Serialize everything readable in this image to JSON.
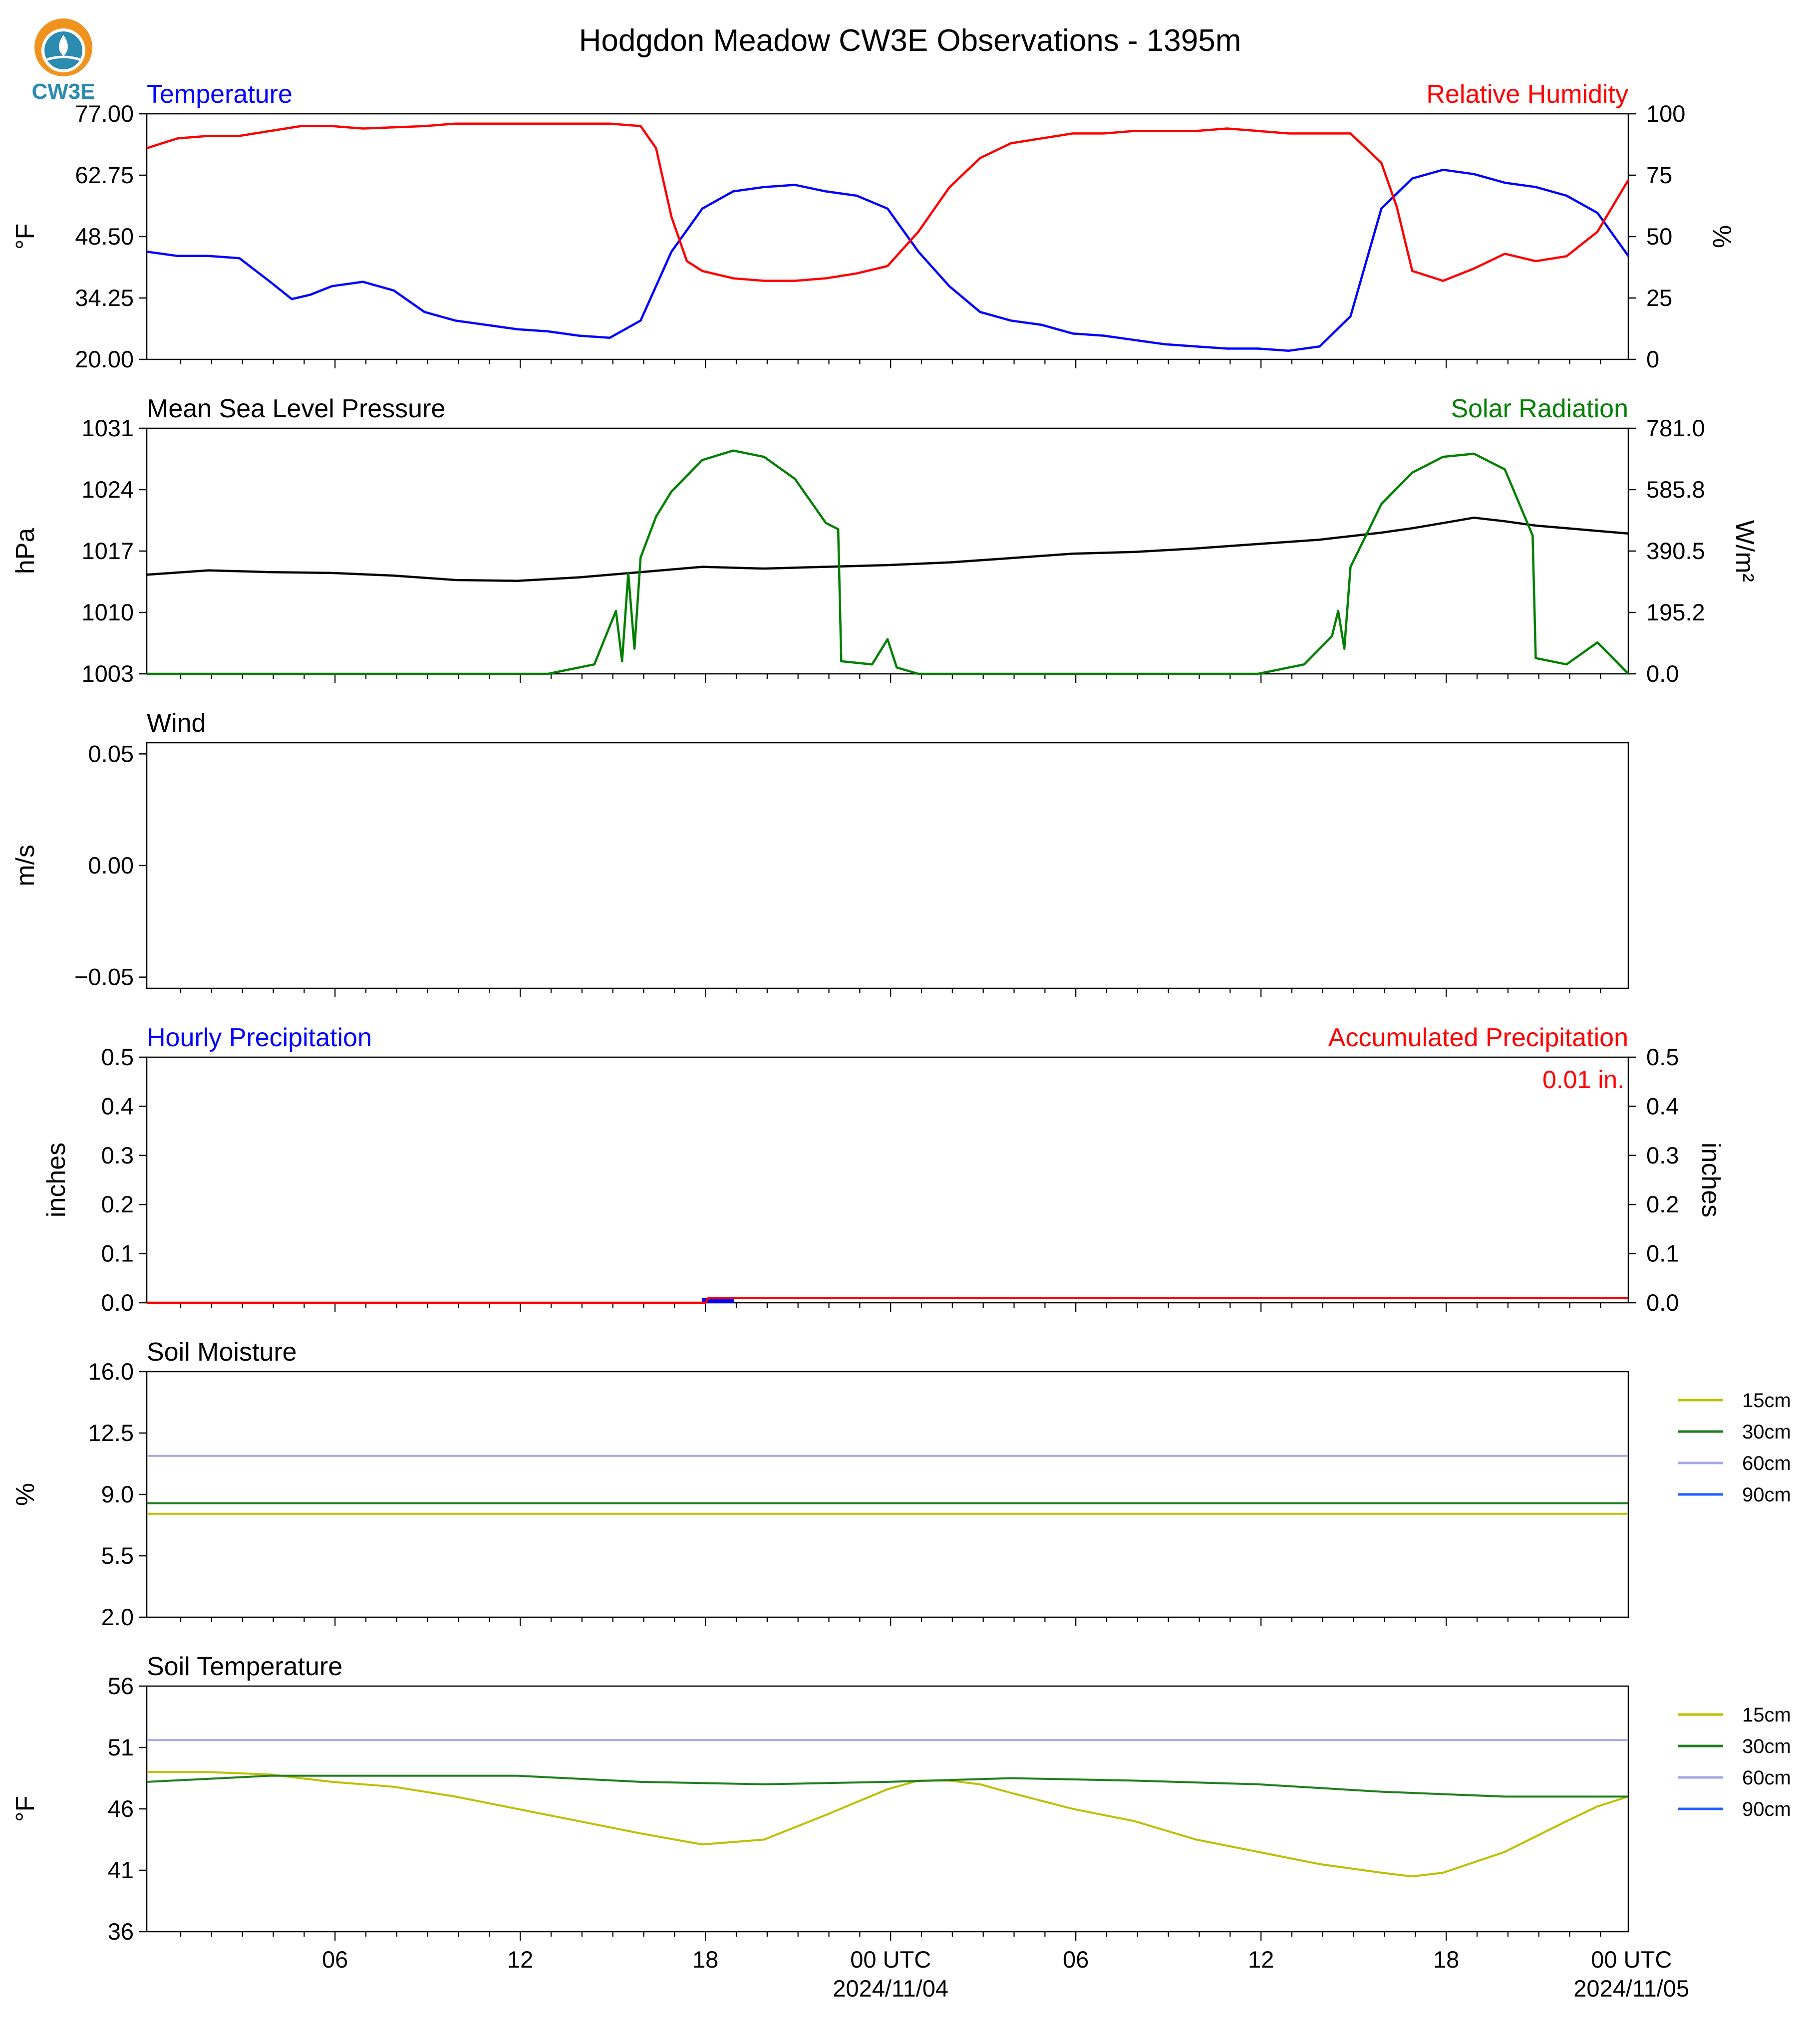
{
  "page": {
    "title": "Hodgdon Meadow CW3E Observations - 1395m",
    "logo_text": "CW3E"
  },
  "colors": {
    "temperature": "#0000ff",
    "humidity": "#ff0000",
    "pressure": "#000000",
    "solar": "#008000",
    "hourly_precip": "#0000ff",
    "accum_precip": "#ff0000",
    "soil_15cm": "#bfbf00",
    "soil_30cm": "#1f7f1f",
    "soil_60cm": "#a6a8e6",
    "soil_90cm": "#1f5fff",
    "logo_orange": "#f0921e",
    "logo_teal": "#2b8bb0"
  },
  "x_axis": {
    "tick_labels": [
      "06",
      "12",
      "18",
      "00 UTC",
      "06",
      "12",
      "18",
      "00 UTC"
    ],
    "date_labels": [
      "2024/11/04",
      "2024/11/05"
    ]
  },
  "chart_data": [
    {
      "type": "line",
      "title_left": "Temperature",
      "title_right": "Relative Humidity",
      "ylabel_left": "°F",
      "ylabel_right": "%",
      "ylim_left": [
        20.0,
        77.0
      ],
      "ylim_right": [
        0,
        100
      ],
      "yticks_left": [
        "20.00",
        "34.25",
        "48.50",
        "62.75",
        "77.00"
      ],
      "yticks_right": [
        "0",
        "25",
        "50",
        "75",
        "100"
      ],
      "x_hours_range": [
        1,
        49
      ],
      "series": [
        {
          "name": "Temperature",
          "axis": "left",
          "x": [
            1,
            2,
            3,
            4,
            5,
            5.7,
            6.3,
            7,
            8,
            9,
            10,
            11,
            12,
            13,
            14,
            15,
            16,
            17,
            18,
            19,
            20,
            21,
            22,
            23,
            24,
            25,
            26,
            27,
            28,
            29,
            30,
            31,
            32,
            33,
            34,
            35,
            36,
            37,
            38,
            39,
            40,
            41,
            42,
            43,
            44,
            45,
            46,
            47,
            48,
            49
          ],
          "y": [
            45,
            44,
            44,
            43.5,
            38,
            34,
            35,
            37,
            38,
            36,
            31,
            29,
            28,
            27,
            26.5,
            25.5,
            25,
            29,
            45,
            55,
            59,
            60,
            60.5,
            59,
            58,
            55,
            45,
            37,
            31,
            29,
            28,
            26,
            25.5,
            24.5,
            23.5,
            23,
            22.5,
            22.5,
            22,
            23,
            30,
            55,
            62,
            64,
            63,
            61,
            60,
            58,
            54,
            44
          ]
        },
        {
          "name": "Relative Humidity",
          "axis": "right",
          "x": [
            1,
            2,
            3,
            4,
            5,
            6,
            7,
            8,
            9,
            10,
            11,
            12,
            13,
            14,
            15,
            16,
            17,
            17.5,
            18,
            18.5,
            19,
            20,
            21,
            22,
            23,
            24,
            25,
            26,
            27,
            28,
            29,
            30,
            31,
            32,
            33,
            34,
            35,
            36,
            37,
            38,
            39,
            40,
            41,
            41.5,
            42,
            43,
            44,
            45,
            46,
            47,
            48,
            49
          ],
          "y": [
            86,
            90,
            91,
            91,
            93,
            95,
            95,
            94,
            94.5,
            95,
            96,
            96,
            96,
            96,
            96,
            96,
            95,
            86,
            58,
            40,
            36,
            33,
            32,
            32,
            33,
            35,
            38,
            52,
            70,
            82,
            88,
            90,
            92,
            92,
            93,
            93,
            93,
            94,
            93,
            92,
            92,
            92,
            80,
            62,
            36,
            32,
            37,
            43,
            40,
            42,
            52,
            73
          ]
        }
      ]
    },
    {
      "type": "line",
      "title_left": "Mean Sea Level Pressure",
      "title_right": "Solar Radiation",
      "ylabel_left": "hPa",
      "ylabel_right": "W/m²",
      "ylim_left": [
        1003,
        1031
      ],
      "ylim_right": [
        0.0,
        781.0
      ],
      "yticks_left": [
        "1003",
        "1010",
        "1017",
        "1024",
        "1031"
      ],
      "yticks_right": [
        "0.0",
        "195.2",
        "390.5",
        "585.8",
        "781.0"
      ],
      "x_hours_range": [
        1,
        49
      ],
      "series": [
        {
          "name": "Mean Sea Level Pressure",
          "axis": "left",
          "x": [
            1,
            3,
            5,
            7,
            9,
            11,
            13,
            15,
            17,
            19,
            21,
            23,
            25,
            27,
            29,
            31,
            33,
            35,
            37,
            39,
            41,
            42,
            43,
            44,
            45,
            46,
            47,
            48,
            49
          ],
          "y": [
            1014.3,
            1014.8,
            1014.6,
            1014.5,
            1014.2,
            1013.7,
            1013.6,
            1014.0,
            1014.6,
            1015.2,
            1015.0,
            1015.2,
            1015.4,
            1015.7,
            1016.2,
            1016.7,
            1016.9,
            1017.3,
            1017.8,
            1018.3,
            1019.1,
            1019.6,
            1020.2,
            1020.8,
            1020.4,
            1019.9,
            1019.6,
            1019.3,
            1019.0
          ]
        },
        {
          "name": "Solar Radiation",
          "axis": "right",
          "x": [
            1,
            14,
            15.5,
            16.2,
            16.4,
            16.6,
            16.8,
            17,
            17.5,
            18,
            19,
            20,
            21,
            22,
            23,
            23.4,
            23.5,
            24.5,
            25,
            25.3,
            26,
            27,
            37,
            38.5,
            39.4,
            39.6,
            39.8,
            40,
            41,
            42,
            43,
            44,
            45,
            45.9,
            46,
            47,
            48,
            49
          ],
          "y": [
            0,
            0,
            30,
            200,
            40,
            320,
            80,
            370,
            500,
            580,
            680,
            710,
            690,
            620,
            480,
            460,
            40,
            30,
            110,
            20,
            0,
            0,
            0,
            30,
            120,
            200,
            80,
            340,
            540,
            640,
            690,
            700,
            650,
            440,
            50,
            30,
            100,
            0
          ]
        }
      ]
    },
    {
      "type": "line",
      "title_left": "Wind",
      "ylabel_left": "m/s",
      "ylim_left": [
        -0.055,
        0.055
      ],
      "yticks_left": [
        "−0.05",
        "0.00",
        "0.05"
      ],
      "series": []
    },
    {
      "type": "bar",
      "title_left": "Hourly Precipitation",
      "title_right": "Accumulated Precipitation",
      "annotation": "0.01 in.",
      "ylabel_left": "inches",
      "ylabel_right": "inches",
      "ylim_left": [
        0.0,
        0.5
      ],
      "ylim_right": [
        0.0,
        0.5
      ],
      "yticks_left": [
        "0.0",
        "0.1",
        "0.2",
        "0.3",
        "0.4",
        "0.5"
      ],
      "yticks_right": [
        "0.0",
        "0.1",
        "0.2",
        "0.3",
        "0.4",
        "0.5"
      ],
      "series": [
        {
          "name": "Hourly Precipitation",
          "axis": "left",
          "x": [
            19.5
          ],
          "y": [
            0.01
          ]
        },
        {
          "name": "Accumulated Precipitation",
          "axis": "right",
          "x": [
            1,
            19.1,
            19.2,
            49
          ],
          "y": [
            0.0,
            0.0,
            0.01,
            0.01
          ]
        }
      ]
    },
    {
      "type": "line",
      "title_left": "Soil Moisture",
      "ylabel_left": "%",
      "ylim_left": [
        2.0,
        16.0
      ],
      "yticks_left": [
        "2.0",
        "5.5",
        "9.0",
        "12.5",
        "16.0"
      ],
      "legend": [
        "15cm",
        "30cm",
        "60cm",
        "90cm"
      ],
      "series": [
        {
          "name": "15cm",
          "x": [
            1,
            49
          ],
          "y": [
            7.9,
            7.9
          ]
        },
        {
          "name": "30cm",
          "x": [
            1,
            49
          ],
          "y": [
            8.5,
            8.5
          ]
        },
        {
          "name": "60cm",
          "x": [
            1,
            49
          ],
          "y": [
            11.2,
            11.2
          ]
        }
      ]
    },
    {
      "type": "line",
      "title_left": "Soil Temperature",
      "ylabel_left": "°F",
      "ylim_left": [
        36,
        56
      ],
      "yticks_left": [
        "36",
        "41",
        "46",
        "51",
        "56"
      ],
      "legend": [
        "15cm",
        "30cm",
        "60cm",
        "90cm"
      ],
      "series": [
        {
          "name": "15cm",
          "x": [
            1,
            3,
            5,
            7,
            9,
            11,
            13,
            15,
            17,
            19,
            21,
            23,
            25,
            26,
            27,
            28,
            29,
            31,
            33,
            35,
            37,
            39,
            41,
            42,
            43,
            45,
            47,
            48,
            49
          ],
          "y": [
            49,
            49,
            48.8,
            48.2,
            47.8,
            47.0,
            46.0,
            45.0,
            44.0,
            43.1,
            43.5,
            45.5,
            47.6,
            48.3,
            48.3,
            48.0,
            47.3,
            46.0,
            45.0,
            43.5,
            42.5,
            41.5,
            40.8,
            40.5,
            40.8,
            42.5,
            45.0,
            46.2,
            47.0
          ]
        },
        {
          "name": "30cm",
          "x": [
            1,
            5,
            9,
            13,
            17,
            21,
            25,
            29,
            33,
            37,
            41,
            45,
            49
          ],
          "y": [
            48.2,
            48.7,
            48.7,
            48.7,
            48.2,
            48.0,
            48.2,
            48.5,
            48.3,
            48.0,
            47.4,
            47.0,
            47.0
          ]
        },
        {
          "name": "60cm",
          "x": [
            1,
            49
          ],
          "y": [
            51.6,
            51.6
          ]
        }
      ]
    }
  ]
}
